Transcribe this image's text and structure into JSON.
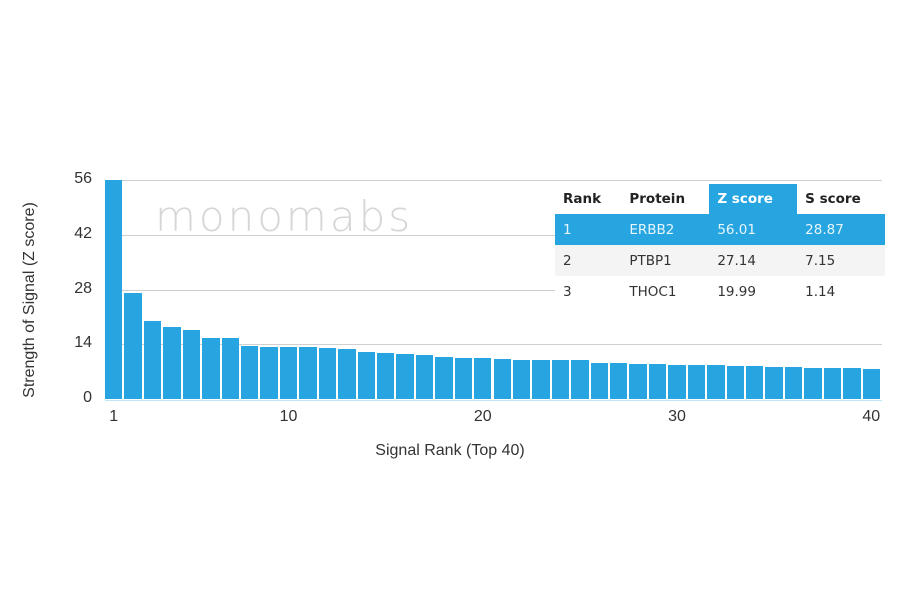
{
  "chart_data": {
    "type": "bar",
    "title": "",
    "xlabel": "Signal Rank (Top 40)",
    "ylabel": "Strength of Signal (Z score)",
    "ylim": [
      0,
      56
    ],
    "yticks": [
      0,
      14,
      28,
      42,
      56
    ],
    "xticks": [
      1,
      10,
      20,
      30,
      40
    ],
    "grid": true,
    "color": "#26a5e0",
    "categories": [
      1,
      2,
      3,
      4,
      5,
      6,
      7,
      8,
      9,
      10,
      11,
      12,
      13,
      14,
      15,
      16,
      17,
      18,
      19,
      20,
      21,
      22,
      23,
      24,
      25,
      26,
      27,
      28,
      29,
      30,
      31,
      32,
      33,
      34,
      35,
      36,
      37,
      38,
      39,
      40
    ],
    "values": [
      56.01,
      27.14,
      19.99,
      18.5,
      17.6,
      15.6,
      15.6,
      13.5,
      13.3,
      13.3,
      13.2,
      13.1,
      12.9,
      11.9,
      11.7,
      11.6,
      11.2,
      10.8,
      10.6,
      10.5,
      10.2,
      10.0,
      10.0,
      10.0,
      9.9,
      9.3,
      9.1,
      9.0,
      8.9,
      8.8,
      8.6,
      8.6,
      8.5,
      8.4,
      8.3,
      8.2,
      8.0,
      7.9,
      7.8,
      7.7
    ],
    "watermark": "monomabs",
    "table": {
      "columns": [
        "Rank",
        "Protein",
        "Z score",
        "S score"
      ],
      "highlight_column": "Z score",
      "rows": [
        {
          "rank": "1",
          "protein": "ERBB2",
          "z": "56.01",
          "s": "28.87"
        },
        {
          "rank": "2",
          "protein": "PTBP1",
          "z": "27.14",
          "s": "7.15"
        },
        {
          "rank": "3",
          "protein": "THOC1",
          "z": "19.99",
          "s": "1.14"
        }
      ]
    }
  }
}
